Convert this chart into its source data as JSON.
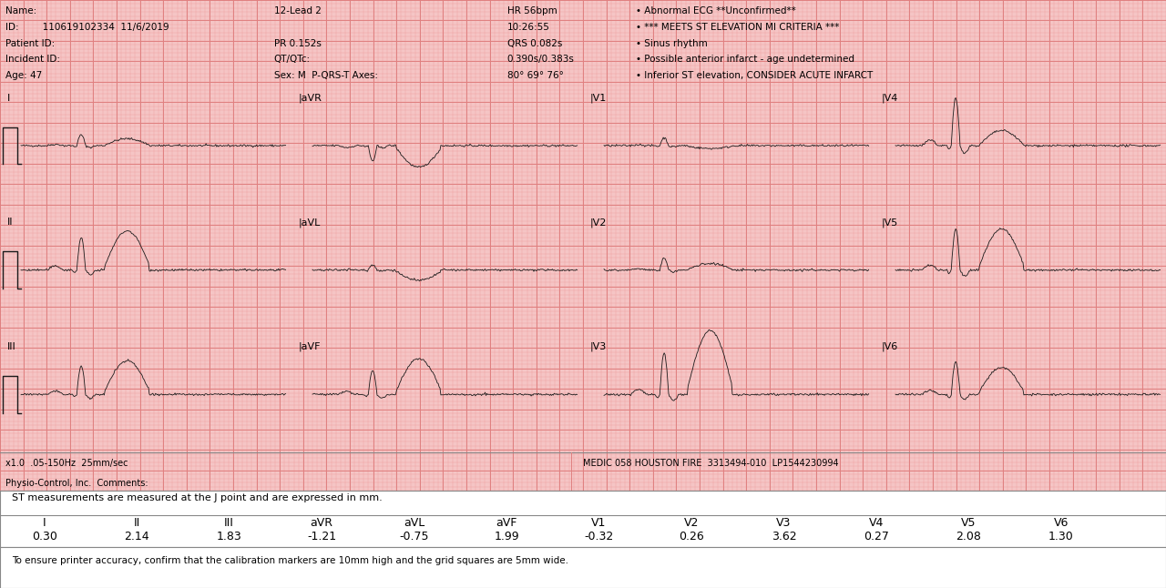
{
  "bg_color": "#f5c5c5",
  "grid_color_major": "#e08080",
  "grid_color_minor": "#f0a0a0",
  "ecg_color": "#1a1a1a",
  "footer_left": "x1.0  .05-150Hz  25mm/sec",
  "footer_medic": "MEDIC 058 HOUSTON FIRE  3313494-010  LP1544230994",
  "footer_physio": "Physio-Control, Inc.  Comments:",
  "st_header": "ST measurements are measured at the J point and are expressed in mm.",
  "st_leads": [
    "I",
    "II",
    "III",
    "aVR",
    "aVL",
    "aVF",
    "V1",
    "V2",
    "V3",
    "V4",
    "V5",
    "V6"
  ],
  "st_values": [
    "0.30",
    "2.14",
    "1.83",
    "-1.21",
    "-0.75",
    "1.99",
    "-0.32",
    "0.26",
    "3.62",
    "0.27",
    "2.08",
    "1.30"
  ],
  "calibration_note": "To ensure printer accuracy, confirm that the calibration markers are 10mm high and the grid squares are 5mm wide.",
  "white_bg": "#ffffff",
  "border_color": "#888888",
  "header_rows": [
    [
      "Name:",
      "12-Lead 2",
      "HR 56bpm",
      "• Abnormal ECG **Unconfirmed**"
    ],
    [
      "ID:        110619102334  11/6/2019",
      "",
      "10:26:55",
      "• *** MEETS ST ELEVATION MI CRITERIA ***"
    ],
    [
      "Patient ID:",
      "PR 0.152s",
      "QRS 0.082s",
      "• Sinus rhythm"
    ],
    [
      "Incident ID:",
      "QT/QTc:",
      "0.390s/0.383s",
      "• Possible anterior infarct - age undetermined"
    ],
    [
      "Age: 47",
      "Sex: M  P-QRS-T Axes:",
      "80° 69° 76°",
      "• Inferior ST elevation, CONSIDER ACUTE INFARCT"
    ]
  ],
  "lead_layout": [
    [
      "I",
      "aVR",
      "V1",
      "V4"
    ],
    [
      "II",
      "aVL",
      "V2",
      "V5"
    ],
    [
      "III",
      "aVF",
      "V3",
      "V6"
    ]
  ],
  "lead_params": {
    "I": [
      0.25,
      0.3,
      false
    ],
    "aVR": [
      -0.35,
      -1.2,
      false
    ],
    "V1": [
      0.18,
      -0.3,
      false
    ],
    "V4": [
      1.1,
      0.3,
      false
    ],
    "II": [
      0.75,
      2.1,
      false
    ],
    "aVL": [
      0.12,
      -0.75,
      false
    ],
    "V2": [
      0.28,
      0.26,
      false
    ],
    "V5": [
      0.95,
      2.1,
      false
    ],
    "III": [
      0.65,
      1.8,
      false
    ],
    "aVF": [
      0.55,
      2.0,
      false
    ],
    "V3": [
      0.95,
      3.6,
      false
    ],
    "V6": [
      0.75,
      1.3,
      false
    ]
  }
}
